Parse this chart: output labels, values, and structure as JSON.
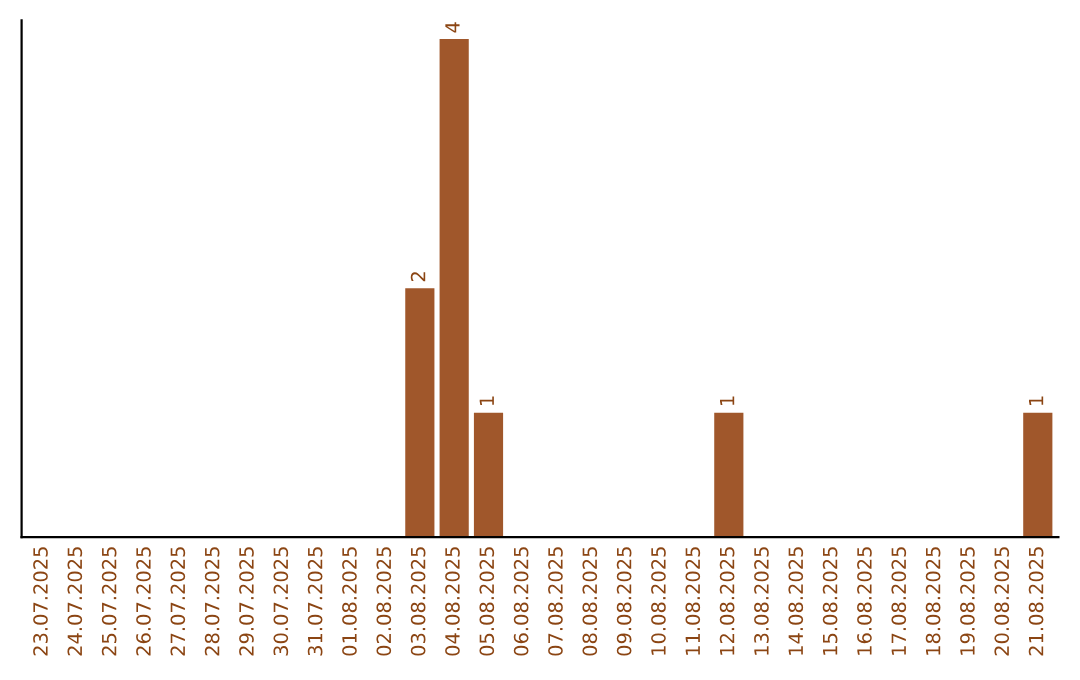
{
  "chart_data": {
    "type": "bar",
    "categories": [
      "23.07.2025",
      "24.07.2025",
      "25.07.2025",
      "26.07.2025",
      "27.07.2025",
      "28.07.2025",
      "29.07.2025",
      "30.07.2025",
      "31.07.2025",
      "01.08.2025",
      "02.08.2025",
      "03.08.2025",
      "04.08.2025",
      "05.08.2025",
      "06.08.2025",
      "07.08.2025",
      "08.08.2025",
      "09.08.2025",
      "10.08.2025",
      "11.08.2025",
      "12.08.2025",
      "13.08.2025",
      "14.08.2025",
      "15.08.2025",
      "16.08.2025",
      "17.08.2025",
      "18.08.2025",
      "19.08.2025",
      "20.08.2025",
      "21.08.2025"
    ],
    "values": [
      0,
      0,
      0,
      0,
      0,
      0,
      0,
      0,
      0,
      0,
      0,
      2,
      4,
      1,
      0,
      0,
      0,
      0,
      0,
      0,
      1,
      0,
      0,
      0,
      0,
      0,
      0,
      0,
      0,
      1
    ],
    "value_labels": [
      null,
      null,
      null,
      null,
      null,
      null,
      null,
      null,
      null,
      null,
      null,
      "2",
      "4",
      "1",
      null,
      null,
      null,
      null,
      null,
      null,
      "1",
      null,
      null,
      null,
      null,
      null,
      null,
      null,
      null,
      "1"
    ],
    "color": "#a0572b",
    "ylim": [
      0,
      4.15
    ],
    "tick_labels": "x",
    "grid": false,
    "legend": false
  }
}
